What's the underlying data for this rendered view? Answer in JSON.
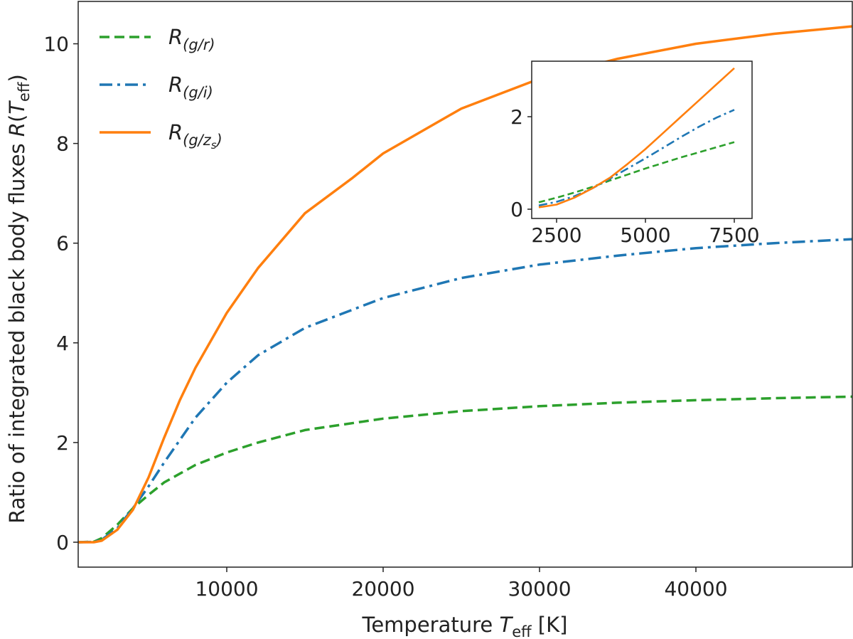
{
  "chart_data": [
    {
      "id": "main",
      "type": "line",
      "title": "",
      "xlabel": "Temperature T_eff [K]",
      "xlabel_parts": {
        "prefix": "Temperature ",
        "sym": "T",
        "sub": "eff",
        "suffix": " [K]"
      },
      "ylabel": "Ratio of integrated black body fluxes  R(T_eff)",
      "ylabel_parts": {
        "prefix": "Ratio of integrated black body fluxes  ",
        "sym": "R",
        "open": "(",
        "sym2": "T",
        "sub": "eff",
        "close": ")"
      },
      "xlim": [
        500,
        50000
      ],
      "ylim": [
        -0.5,
        10.85
      ],
      "xticks": [
        10000,
        20000,
        30000,
        40000
      ],
      "xtick_labels": [
        "10000",
        "20000",
        "30000",
        "40000"
      ],
      "yticks": [
        0,
        2,
        4,
        6,
        8,
        10
      ],
      "ytick_labels": [
        "0",
        "2",
        "4",
        "6",
        "8",
        "10"
      ],
      "legend_position": "top-left",
      "series": [
        {
          "name": "R_(g/r)",
          "legend": {
            "sym": "R",
            "sub": "(g/r)"
          },
          "color": "#2ca02c",
          "style": "dashed",
          "x": [
            500,
            1500,
            2000,
            3000,
            4000,
            5000,
            6000,
            8000,
            10000,
            12000,
            15000,
            20000,
            25000,
            30000,
            35000,
            40000,
            45000,
            50000
          ],
          "y": [
            0.0,
            0.01,
            0.08,
            0.35,
            0.68,
            0.95,
            1.2,
            1.55,
            1.8,
            2.0,
            2.25,
            2.48,
            2.63,
            2.73,
            2.8,
            2.85,
            2.89,
            2.92
          ]
        },
        {
          "name": "R_(g/i)",
          "legend": {
            "sym": "R",
            "sub": "(g/i)"
          },
          "color": "#1f77b4",
          "style": "dashdot",
          "x": [
            500,
            1500,
            2000,
            3000,
            4000,
            5000,
            6000,
            8000,
            10000,
            12000,
            15000,
            20000,
            25000,
            30000,
            35000,
            40000,
            45000,
            50000
          ],
          "y": [
            0.0,
            0.005,
            0.05,
            0.28,
            0.68,
            1.12,
            1.6,
            2.5,
            3.2,
            3.75,
            4.3,
            4.9,
            5.3,
            5.57,
            5.75,
            5.9,
            6.0,
            6.08
          ]
        },
        {
          "name": "R_(g/z_s)",
          "legend": {
            "sym": "R",
            "sub": "(g/z",
            "subsub": "s",
            "close": ")"
          },
          "color": "#ff7f0e",
          "style": "solid",
          "x": [
            500,
            1500,
            2000,
            3000,
            4000,
            5000,
            6000,
            7000,
            8000,
            10000,
            12000,
            15000,
            18000,
            20000,
            25000,
            30000,
            35000,
            40000,
            45000,
            50000
          ],
          "y": [
            0.0,
            0.0,
            0.03,
            0.25,
            0.65,
            1.3,
            2.1,
            2.85,
            3.5,
            4.6,
            5.5,
            6.6,
            7.3,
            7.8,
            8.7,
            9.3,
            9.7,
            10.0,
            10.2,
            10.35
          ]
        }
      ]
    },
    {
      "id": "inset",
      "type": "line",
      "title": "",
      "xlim": [
        1800,
        8000
      ],
      "ylim": [
        -0.2,
        3.2
      ],
      "xticks": [
        2500,
        5000,
        7500
      ],
      "xtick_labels": [
        "2500",
        "5000",
        "7500"
      ],
      "yticks": [
        0,
        2
      ],
      "ytick_labels": [
        "0",
        "2"
      ],
      "series": [
        {
          "color": "#2ca02c",
          "style": "dashed",
          "x": [
            2000,
            2500,
            3000,
            3500,
            4000,
            4500,
            5000,
            5500,
            6000,
            6500,
            7000,
            7500
          ],
          "y": [
            0.15,
            0.25,
            0.36,
            0.48,
            0.62,
            0.75,
            0.88,
            1.0,
            1.12,
            1.23,
            1.34,
            1.45
          ]
        },
        {
          "color": "#1f77b4",
          "style": "dashdot",
          "x": [
            2000,
            2500,
            3000,
            3500,
            4000,
            4500,
            5000,
            5500,
            6000,
            6500,
            7000,
            7500
          ],
          "y": [
            0.08,
            0.16,
            0.28,
            0.45,
            0.66,
            0.88,
            1.1,
            1.33,
            1.56,
            1.78,
            1.98,
            2.15
          ]
        },
        {
          "color": "#ff7f0e",
          "style": "solid",
          "x": [
            2000,
            2500,
            3000,
            3500,
            4000,
            4500,
            5000,
            5500,
            6000,
            6500,
            7000,
            7500
          ],
          "y": [
            0.04,
            0.1,
            0.25,
            0.45,
            0.68,
            0.98,
            1.3,
            1.65,
            2.0,
            2.35,
            2.7,
            3.05
          ]
        }
      ]
    }
  ]
}
